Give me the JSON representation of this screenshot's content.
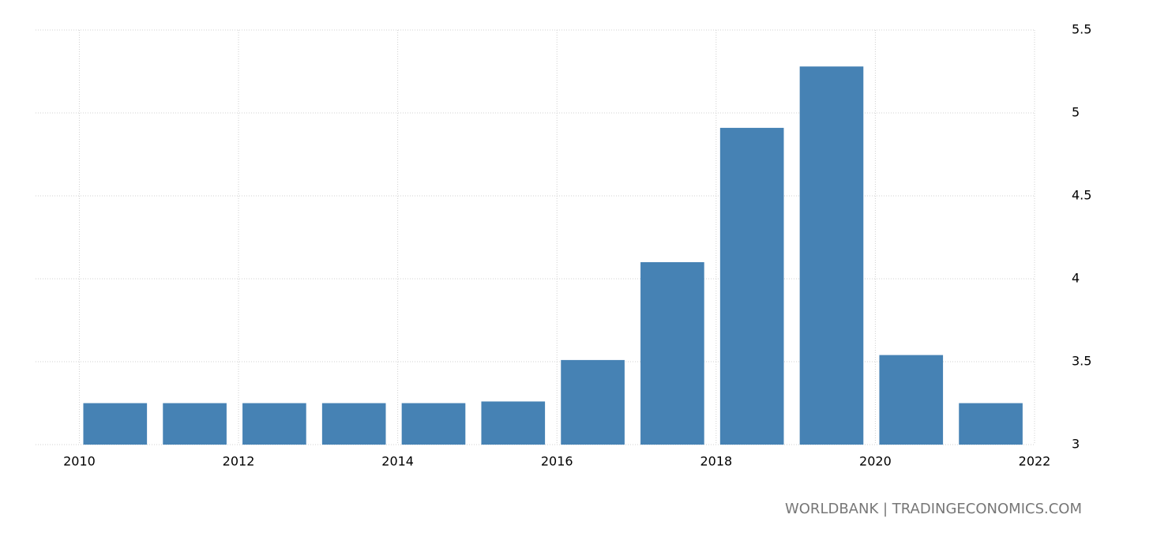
{
  "chart_data": {
    "type": "bar",
    "x": [
      2010,
      2011,
      2012,
      2013,
      2014,
      2015,
      2016,
      2017,
      2018,
      2019,
      2020,
      2021
    ],
    "values": [
      3.25,
      3.25,
      3.25,
      3.25,
      3.25,
      3.26,
      3.51,
      4.1,
      4.91,
      5.28,
      3.54,
      3.25
    ],
    "color": "#4682b4",
    "xlim": [
      2009.45,
      2022
    ],
    "xticks": [
      2010,
      2012,
      2014,
      2016,
      2018,
      2020,
      2022
    ],
    "ylim": [
      3,
      5.5
    ],
    "yticks": [
      3,
      3.5,
      4,
      4.5,
      5,
      5.5
    ],
    "grid": true,
    "source": "WORLDBANK | TRADINGECONOMICS.COM"
  }
}
